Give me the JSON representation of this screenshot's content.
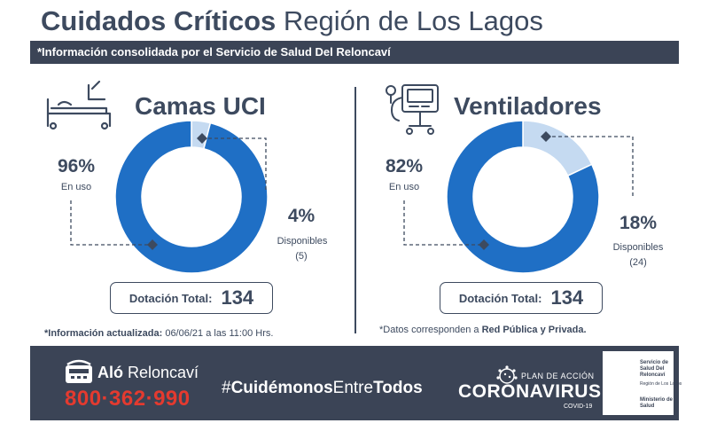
{
  "header": {
    "title_bold": "Cuidados Críticos",
    "title_light": "Región de Los Lagos",
    "banner": "*Información consolidada por el Servicio de Salud Del Reloncaví"
  },
  "chart_data": [
    {
      "type": "pie",
      "title": "Camas UCI",
      "categories": [
        "En uso",
        "Disponibles"
      ],
      "values": [
        96,
        4
      ],
      "value_labels": [
        "96%",
        "4%"
      ],
      "counts_label": "(5)",
      "colors": [
        "#1f6fc5",
        "#c5daf1"
      ],
      "total_label": "Dotación Total:",
      "total_value": "134"
    },
    {
      "type": "pie",
      "title": "Ventiladores",
      "categories": [
        "En uso",
        "Disponibles"
      ],
      "values": [
        82,
        18
      ],
      "value_labels": [
        "82%",
        "18%"
      ],
      "counts_label": "(24)",
      "colors": [
        "#1f6fc5",
        "#c5daf1"
      ],
      "total_label": "Dotación Total:",
      "total_value": "134"
    }
  ],
  "notes": {
    "left_bold": "*Información actualizada:",
    "left_rest": " 06/06/21 a las 11:00 Hrs.",
    "right_prefix": "*Datos corresponden a ",
    "right_bold": "Red Pública y Privada."
  },
  "footer": {
    "alo_bold": "Aló",
    "alo_rest": " Reloncaví",
    "phone": "800·362·990",
    "hashtag_a": "#",
    "hashtag_b": "Cuidémonos",
    "hashtag_c": "Entre",
    "hashtag_d": "Todos",
    "plan": "PLAN DE ACCIÓN",
    "coronavirus": "CORONAVIRUS",
    "covid": "COVID-19",
    "gov_line1": "Servicio de",
    "gov_line2": "Salud Del",
    "gov_line3": "Reloncaví",
    "gov_line4": "Región de Los Lagos",
    "gov_line5": "Ministerio de",
    "gov_line6": "Salud"
  },
  "icons": [
    "hospital-bed-icon",
    "ventilator-icon",
    "phone-icon",
    "coronavirus-icon",
    "chile-shield-icon"
  ]
}
